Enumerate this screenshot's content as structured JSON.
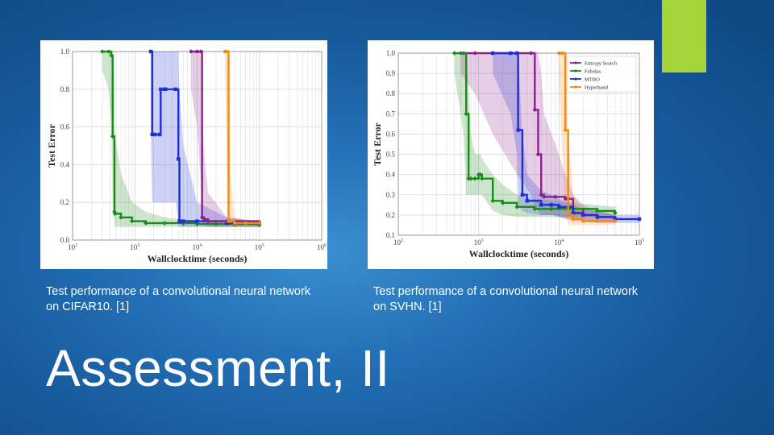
{
  "slide": {
    "title": "Assessment, II",
    "caption_left": "Test performance of a convolutional neural network on CIFAR10. [1]",
    "caption_right": "Test performance of a convolutional neural network on SVHN. [1]",
    "accent_color": "#a4d33a"
  },
  "chart_data": [
    {
      "type": "line",
      "title": "",
      "xlabel": "Wallclocktime (seconds)",
      "ylabel": "Test Error",
      "x_scale": "log",
      "xlim": [
        100,
        1000000
      ],
      "ylim": [
        0.0,
        1.0
      ],
      "xticks": [
        100,
        1000,
        10000,
        100000,
        1000000
      ],
      "xtick_labels": [
        [
          "10",
          "2"
        ],
        [
          "10",
          "3"
        ],
        [
          "10",
          "4"
        ],
        [
          "10",
          "5"
        ],
        [
          "10",
          "6"
        ]
      ],
      "yticks": [
        0.0,
        0.2,
        0.4,
        0.6,
        0.8,
        1.0
      ],
      "ytick_labels": [
        "0.0",
        "0.2",
        "0.4",
        "0.6",
        "0.8",
        "1.0"
      ],
      "grid": true,
      "series": [
        {
          "color": "#1a8a1a",
          "marker": "diamond",
          "x": [
            300,
            380,
            420,
            440,
            470,
            480,
            600,
            900,
            1500,
            3000,
            6000,
            10000,
            20000,
            40000,
            100000
          ],
          "y": [
            1.0,
            1.0,
            0.98,
            0.55,
            0.15,
            0.14,
            0.12,
            0.1,
            0.09,
            0.09,
            0.09,
            0.085,
            0.085,
            0.085,
            0.08
          ],
          "band_upper": [
            1.0,
            1.0,
            1.0,
            0.98,
            0.85,
            0.55,
            0.35,
            0.2,
            0.15,
            0.12,
            0.11,
            0.1,
            0.1,
            0.1,
            0.1
          ],
          "band_lower": [
            0.9,
            0.8,
            0.6,
            0.2,
            0.08,
            0.07,
            0.07,
            0.07,
            0.07,
            0.07,
            0.07,
            0.07,
            0.07,
            0.07,
            0.07
          ]
        },
        {
          "color": "#1f2fd8",
          "marker": "square",
          "x": [
            1800,
            1900,
            2100,
            2500,
            2600,
            3000,
            3100,
            4500,
            5000,
            5200,
            6000,
            10000,
            30000,
            100000
          ],
          "y": [
            1.0,
            0.56,
            0.56,
            0.56,
            0.8,
            0.8,
            0.8,
            0.8,
            0.43,
            0.1,
            0.1,
            0.1,
            0.09,
            0.09
          ],
          "band_upper": [
            1.0,
            1.0,
            1.0,
            1.0,
            1.0,
            1.0,
            1.0,
            1.0,
            1.0,
            0.8,
            0.5,
            0.2,
            0.12,
            0.1
          ],
          "band_lower": [
            0.6,
            0.2,
            0.2,
            0.2,
            0.2,
            0.2,
            0.2,
            0.2,
            0.1,
            0.07,
            0.07,
            0.07,
            0.07,
            0.07
          ]
        },
        {
          "color": "#8e1e8e",
          "marker": "circle",
          "x": [
            8000,
            10000,
            11500,
            12000,
            13000,
            15000,
            30000,
            100000
          ],
          "y": [
            1.0,
            1.0,
            1.0,
            0.12,
            0.11,
            0.1,
            0.1,
            0.09
          ],
          "band_upper": [
            1.0,
            1.0,
            1.0,
            0.7,
            0.45,
            0.25,
            0.12,
            0.1
          ],
          "band_lower": [
            0.8,
            0.6,
            0.3,
            0.08,
            0.08,
            0.07,
            0.07,
            0.07
          ]
        },
        {
          "color": "#f08a10",
          "marker": "circle",
          "x": [
            28000,
            30000,
            32000,
            35000,
            40000,
            60000,
            100000
          ],
          "y": [
            1.0,
            1.0,
            0.1,
            0.1,
            0.09,
            0.09,
            0.09
          ],
          "band_upper": [
            1.0,
            1.0,
            0.9,
            0.3,
            0.12,
            0.1,
            0.1
          ],
          "band_lower": [
            0.9,
            0.5,
            0.08,
            0.07,
            0.07,
            0.07,
            0.07
          ]
        }
      ]
    },
    {
      "type": "line",
      "title": "",
      "xlabel": "Wallclocktime (seconds)",
      "ylabel": "Test Error",
      "x_scale": "log",
      "xlim": [
        100,
        100000
      ],
      "ylim": [
        0.1,
        1.0
      ],
      "xticks": [
        100,
        1000,
        10000,
        100000
      ],
      "xtick_labels": [
        [
          "10",
          "2"
        ],
        [
          "10",
          "3"
        ],
        [
          "10",
          "4"
        ],
        [
          "10",
          "5"
        ]
      ],
      "yticks": [
        0.1,
        0.2,
        0.3,
        0.4,
        0.5,
        0.6,
        0.7,
        0.8,
        0.9,
        1.0
      ],
      "ytick_labels": [
        "0.1",
        "0.2",
        "0.3",
        "0.4",
        "0.5",
        "0.6",
        "0.7",
        "0.8",
        "0.9",
        "1.0"
      ],
      "grid": true,
      "legend": {
        "position": "top-right",
        "entries": [
          {
            "name": "Entropy Search",
            "color": "#8e1e8e"
          },
          {
            "name": "Fabolas",
            "color": "#1a8a1a"
          },
          {
            "name": "MTBO",
            "color": "#1f2fd8"
          },
          {
            "name": "Hyperband",
            "color": "#f08a10"
          }
        ]
      },
      "series": [
        {
          "name": "Entropy Search",
          "color": "#8e1e8e",
          "marker": "circle",
          "x": [
            600,
            900,
            1500,
            3000,
            4500,
            5000,
            5500,
            6000,
            6500,
            9000,
            12000,
            15000,
            20000,
            30000,
            50000
          ],
          "y": [
            1.0,
            1.0,
            1.0,
            1.0,
            1.0,
            0.72,
            0.5,
            0.3,
            0.29,
            0.29,
            0.28,
            0.23,
            0.2,
            0.19,
            0.18
          ],
          "band_upper": [
            1.0,
            1.0,
            1.0,
            1.0,
            1.0,
            1.0,
            1.0,
            0.9,
            0.7,
            0.55,
            0.4,
            0.3,
            0.25,
            0.22,
            0.2
          ],
          "band_lower": [
            0.9,
            0.8,
            0.6,
            0.4,
            0.3,
            0.25,
            0.22,
            0.2,
            0.2,
            0.2,
            0.18,
            0.17,
            0.17,
            0.17,
            0.17
          ]
        },
        {
          "name": "Fabolas",
          "color": "#1a8a1a",
          "marker": "diamond",
          "x": [
            500,
            650,
            700,
            750,
            800,
            900,
            1000,
            1050,
            1100,
            1500,
            2000,
            3000,
            5000,
            8000,
            15000,
            30000,
            50000
          ],
          "y": [
            1.0,
            1.0,
            0.7,
            0.38,
            0.38,
            0.38,
            0.4,
            0.4,
            0.38,
            0.27,
            0.26,
            0.24,
            0.23,
            0.23,
            0.23,
            0.22,
            0.21
          ],
          "band_upper": [
            1.0,
            1.0,
            1.0,
            0.85,
            0.6,
            0.5,
            0.5,
            0.5,
            0.48,
            0.4,
            0.35,
            0.3,
            0.28,
            0.27,
            0.26,
            0.25,
            0.24
          ],
          "band_lower": [
            0.9,
            0.6,
            0.3,
            0.3,
            0.3,
            0.3,
            0.3,
            0.3,
            0.3,
            0.22,
            0.2,
            0.19,
            0.19,
            0.19,
            0.19,
            0.19,
            0.19
          ]
        },
        {
          "name": "MTBO",
          "color": "#1f2fd8",
          "marker": "square",
          "x": [
            1500,
            2500,
            3000,
            3100,
            3500,
            4000,
            6000,
            8000,
            10000,
            15000,
            20000,
            30000,
            50000,
            100000
          ],
          "y": [
            1.0,
            1.0,
            1.0,
            0.62,
            0.3,
            0.27,
            0.25,
            0.25,
            0.24,
            0.21,
            0.2,
            0.19,
            0.18,
            0.18
          ],
          "band_upper": [
            1.0,
            1.0,
            1.0,
            1.0,
            0.6,
            0.4,
            0.32,
            0.3,
            0.28,
            0.25,
            0.23,
            0.22,
            0.2,
            0.2
          ],
          "band_lower": [
            0.9,
            0.7,
            0.5,
            0.25,
            0.22,
            0.21,
            0.2,
            0.2,
            0.19,
            0.18,
            0.17,
            0.16,
            0.16,
            0.16
          ]
        },
        {
          "name": "Hyperband",
          "color": "#f08a10",
          "marker": "circle",
          "x": [
            10000,
            11000,
            12000,
            13000,
            15000,
            20000,
            30000,
            50000
          ],
          "y": [
            1.0,
            1.0,
            0.62,
            0.2,
            0.18,
            0.17,
            0.17,
            0.17
          ],
          "band_upper": [
            1.0,
            1.0,
            1.0,
            0.6,
            0.3,
            0.22,
            0.2,
            0.2
          ],
          "band_lower": [
            0.9,
            0.5,
            0.2,
            0.15,
            0.15,
            0.15,
            0.15,
            0.15
          ]
        }
      ]
    }
  ]
}
